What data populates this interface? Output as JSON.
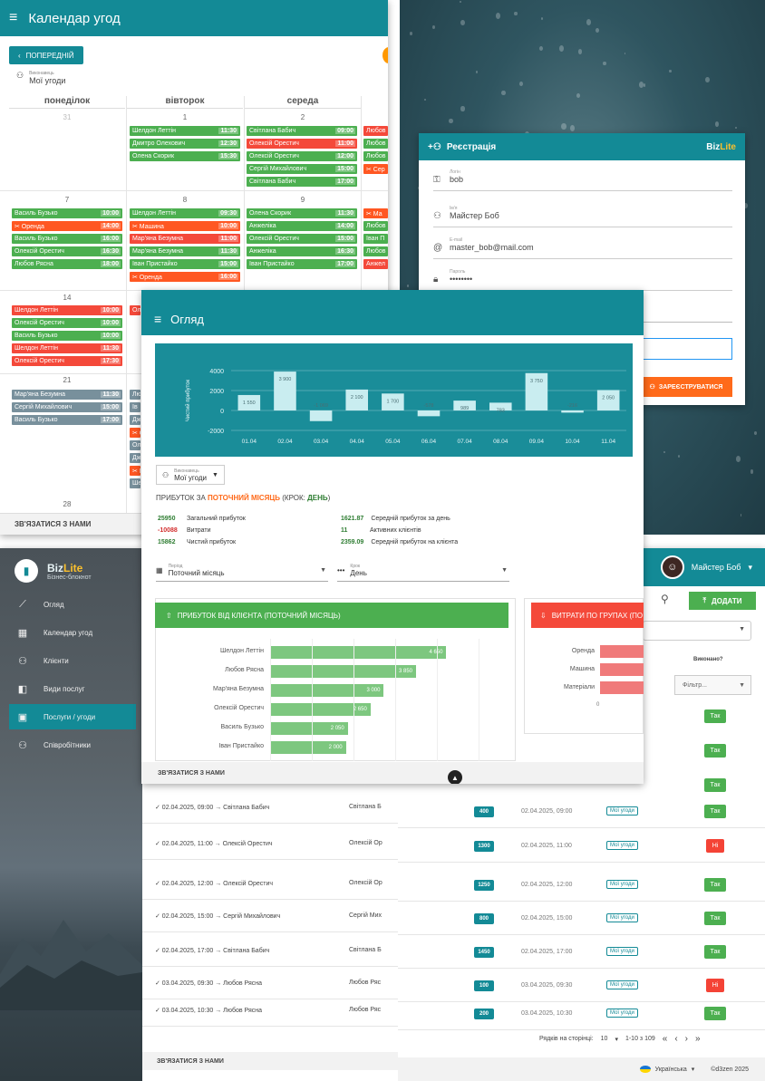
{
  "calendar": {
    "title": "Календар угод",
    "prev_label": "ПОПЕРЕДНІЙ",
    "executor_caption": "Виконавець",
    "executor_value": "Мої угоди",
    "weekdays": [
      "понеділок",
      "вівторок",
      "середа"
    ],
    "day_numbers": [
      "31",
      "1",
      "2",
      "7",
      "8",
      "9",
      "14",
      "21",
      "28"
    ],
    "events": [
      {
        "name": "Шелдон Леттін",
        "time": "11:30",
        "color": "g"
      },
      {
        "name": "Дмитро Олехович",
        "time": "12:30",
        "color": "g"
      },
      {
        "name": "Олена Скорик",
        "time": "15:30",
        "color": "g"
      },
      {
        "name": "Світлана Бабич",
        "time": "09:00",
        "color": "g"
      },
      {
        "name": "Олексій Орестич",
        "time": "11:00",
        "color": "r"
      },
      {
        "name": "Олексій Орестич",
        "time": "12:00",
        "color": "g"
      },
      {
        "name": "Сергій Михайлович",
        "time": "15:00",
        "color": "g"
      },
      {
        "name": "Світлана Бабич",
        "time": "17:00",
        "color": "g"
      },
      {
        "name": "Любов",
        "time": "",
        "color": "r"
      },
      {
        "name": "Любов",
        "time": "",
        "color": "g"
      },
      {
        "name": "Любов",
        "time": "",
        "color": "g"
      },
      {
        "name": "Сер",
        "time": "",
        "color": "o"
      },
      {
        "name": "Василь Бузько",
        "time": "10:00",
        "color": "g"
      },
      {
        "name": "Оренда",
        "time": "14:00",
        "color": "o"
      },
      {
        "name": "Василь Бузько",
        "time": "16:00",
        "color": "g"
      },
      {
        "name": "Олексій Орестич",
        "time": "16:30",
        "color": "g"
      },
      {
        "name": "Любов Рясна",
        "time": "18:00",
        "color": "g"
      },
      {
        "name": "Шелдон Леттін",
        "time": "09:30",
        "color": "g"
      },
      {
        "name": "Машина",
        "time": "10:00",
        "color": "o"
      },
      {
        "name": "Мар'яна Безумна",
        "time": "11:00",
        "color": "r"
      },
      {
        "name": "Мар'яна Безумна",
        "time": "11:30",
        "color": "g"
      },
      {
        "name": "Іван Пристайко",
        "time": "15:00",
        "color": "g"
      },
      {
        "name": "Оренда",
        "time": "16:00",
        "color": "o"
      },
      {
        "name": "Олена Скорик",
        "time": "11:30",
        "color": "g"
      },
      {
        "name": "Анжеліка",
        "time": "14:00",
        "color": "g"
      },
      {
        "name": "Олексій Орестич",
        "time": "15:00",
        "color": "g"
      },
      {
        "name": "Анжеліка",
        "time": "16:30",
        "color": "g"
      },
      {
        "name": "Іван Пристайко",
        "time": "17:00",
        "color": "g"
      },
      {
        "name": "Ма",
        "time": "",
        "color": "o"
      },
      {
        "name": "Любов",
        "time": "",
        "color": "g"
      },
      {
        "name": "Іван П",
        "time": "",
        "color": "g"
      },
      {
        "name": "Любов",
        "time": "",
        "color": "g"
      },
      {
        "name": "Анжел",
        "time": "",
        "color": "r"
      },
      {
        "name": "Шелдон Леттін",
        "time": "10:00",
        "color": "r"
      },
      {
        "name": "Олексій Орестич",
        "time": "10:00",
        "color": "g"
      },
      {
        "name": "Василь Бузько",
        "time": "10:00",
        "color": "g"
      },
      {
        "name": "Шелдон Леттін",
        "time": "11:30",
        "color": "r"
      },
      {
        "name": "Олексій Орестич",
        "time": "17:30",
        "color": "r"
      },
      {
        "name": "Мар'яна Безумна",
        "time": "11:30",
        "color": "gr"
      },
      {
        "name": "Сергій Михайлович",
        "time": "15:00",
        "color": "gr"
      },
      {
        "name": "Василь Бузько",
        "time": "17:00",
        "color": "gr"
      },
      {
        "name": "Ол",
        "time": "",
        "color": "r"
      },
      {
        "name": "Лю",
        "time": "",
        "color": "gr"
      },
      {
        "name": "Ів",
        "time": "",
        "color": "gr"
      },
      {
        "name": "Дж",
        "time": "",
        "color": "gr"
      },
      {
        "name": "Оре",
        "time": "",
        "color": "o"
      },
      {
        "name": "Ол",
        "time": "",
        "color": "gr"
      },
      {
        "name": "Дж",
        "time": "",
        "color": "gr"
      },
      {
        "name": "Ма",
        "time": "",
        "color": "o"
      },
      {
        "name": "Ше",
        "time": "",
        "color": "gr"
      }
    ],
    "footer": "ЗВ'ЯЗАТИСЯ З НАМИ"
  },
  "registration": {
    "title": "Реєстрація",
    "brand_biz": "Biz",
    "brand_lite": "Lite",
    "fields": [
      {
        "label": "Логін",
        "value": "bob",
        "icon": "key-icon"
      },
      {
        "label": "Ім'я",
        "value": "Майстер Боб",
        "icon": "person-icon"
      },
      {
        "label": "E-mail",
        "value": "master_bob@mail.com",
        "icon": "at-icon"
      },
      {
        "label": "Пароль",
        "value": "••••••••",
        "icon": "lock-icon"
      }
    ],
    "submit_label": "ЗАРЕЄСТРУВАТИСЯ"
  },
  "overview": {
    "title": "Огляд",
    "executor_caption": "Виконавець",
    "executor_value": "Мої угоди",
    "profit_prefix": "ПРИБУТОК ЗА ",
    "profit_period": "ПОТОЧНИЙ МІСЯЦЬ",
    "profit_step_prefix": " (КРОК: ",
    "profit_step": "ДЕНЬ",
    "profit_suffix": ")",
    "stats_left": [
      {
        "value": "25950",
        "label": "Загальний прибуток",
        "tone": "pos"
      },
      {
        "value": "-10088",
        "label": "Витрати",
        "tone": "neg"
      },
      {
        "value": "15862",
        "label": "Чистий прибуток",
        "tone": "pos"
      }
    ],
    "stats_right": [
      {
        "value": "1621.87",
        "label": "Середній прибуток за день",
        "tone": "pos"
      },
      {
        "value": "11",
        "label": "Активних клієнтів",
        "tone": "pos"
      },
      {
        "value": "2359.09",
        "label": "Середній прибуток на клієнта",
        "tone": "pos"
      }
    ],
    "period_caption": "Період",
    "period_value": "Поточний місяць",
    "step_caption": "Крок",
    "step_value": "День",
    "client_card": "ПРИБУТОК ВІД КЛІЄНТА (ПОТОЧНИЙ МІСЯЦЬ)",
    "expense_card": "ВИТРАТИ ПО ГРУПАХ (ПО",
    "client_bars": [
      {
        "name": "Шелдон Леттін",
        "value": 4650
      },
      {
        "name": "Любов Рясна",
        "value": 3850
      },
      {
        "name": "Мар'яна Безумна",
        "value": 3000
      },
      {
        "name": "Олексій Орестич",
        "value": 2650
      },
      {
        "name": "Василь Бузько",
        "value": 2050
      },
      {
        "name": "Іван Пристайко",
        "value": 2000
      }
    ],
    "expense_groups": [
      "Оренда",
      "Машина",
      "Матеріали"
    ],
    "expense_axis_zero": "0",
    "footer": "ЗВ'ЯЗАТИСЯ З НАМИ"
  },
  "chart_data": {
    "type": "bar",
    "title": "",
    "ylabel": "Чистий прибуток",
    "xlabel": "",
    "ylim": [
      -2000,
      4000
    ],
    "yticks": [
      "4000",
      "2000",
      "0",
      "-2000"
    ],
    "categories": [
      "01.04",
      "02.04",
      "03.04",
      "04.04",
      "05.04",
      "06.04",
      "07.04",
      "08.04",
      "09.04",
      "10.04",
      "11.04"
    ],
    "values": [
      1550,
      3900,
      -1069,
      2100,
      1700,
      -578,
      989,
      783,
      3750,
      -216,
      2050
    ],
    "value_labels": [
      "1 550",
      "3 900",
      "-1 069",
      "2 100",
      "1 700",
      "-578",
      "989",
      "783",
      "3 750",
      "-216",
      "2 050"
    ]
  },
  "sidebar": {
    "brand_biz": "Biz",
    "brand_lite": "Lite",
    "brand_sub": "Бізнес-блокнот",
    "items": [
      {
        "label": "Огляд",
        "icon": "chart-line-icon",
        "active": false
      },
      {
        "label": "Календар угод",
        "icon": "calendar-icon",
        "active": false
      },
      {
        "label": "Клієнти",
        "icon": "people-icon",
        "active": false
      },
      {
        "label": "Види послуг",
        "icon": "services-icon",
        "active": false
      },
      {
        "label": "Послуги / угоди",
        "icon": "deals-icon",
        "active": true
      },
      {
        "label": "Співробітники",
        "icon": "staff-icon",
        "active": false
      }
    ]
  },
  "deals_list": {
    "rows": [
      {
        "text": "✓ 02.04.2025, 09:00 → Світлана Бабич",
        "who": "Світлана Б"
      },
      {
        "text": "✓ 02.04.2025, 11:00 → Олексій Орестич",
        "who": "Олексій Ор"
      },
      {
        "text": "✓ 02.04.2025, 12:00 → Олексій Орестич",
        "who": "Олексій Ор"
      },
      {
        "text": "✓ 02.04.2025, 15:00 → Сергій Михайлович",
        "who": "Сергій Мих"
      },
      {
        "text": "✓ 02.04.2025, 17:00 → Світлана Бабич",
        "who": "Світлана Б"
      },
      {
        "text": "✓ 03.04.2025, 09:30 → Любов Рясна",
        "who": "Любов Ряс"
      },
      {
        "text": "✓ 03.04.2025, 10:30 → Любов Рясна",
        "who": "Любов Ряс"
      }
    ],
    "footer": "ЗВ'ЯЗАТИСЯ З НАМИ"
  },
  "services": {
    "user_name": "Майстер Боб",
    "add_label": "ДОДАТИ",
    "done_col": "Виконано?",
    "filter_placeholder": "Фільтр...",
    "top_yes": [
      "Так",
      "Так",
      "Так"
    ],
    "rows": [
      {
        "price": "400",
        "date": "02.04.2025, 09:00",
        "chip": "Мої угоди",
        "done": "Так",
        "ok": true
      },
      {
        "price": "1300",
        "date": "02.04.2025, 11:00",
        "chip": "Мої угоди",
        "done": "Ні",
        "ok": false
      },
      {
        "price": "1250",
        "date": "02.04.2025, 12:00",
        "chip": "Мої угоди",
        "done": "Так",
        "ok": true
      },
      {
        "price": "800",
        "date": "02.04.2025, 15:00",
        "chip": "Мої угоди",
        "done": "Так",
        "ok": true
      },
      {
        "price": "1450",
        "date": "02.04.2025, 17:00",
        "chip": "Мої угоди",
        "done": "Так",
        "ok": true
      },
      {
        "price": "100",
        "date": "03.04.2025, 09:30",
        "chip": "Мої угоди",
        "done": "Ні",
        "ok": false
      },
      {
        "price": "200",
        "date": "03.04.2025, 10:30",
        "chip": "Мої угоди",
        "done": "Так",
        "ok": true
      }
    ],
    "rows_per_page_label": "Рядків на сторінці:",
    "rows_per_page": "10",
    "range": "1-10 з 109",
    "language": "Українська",
    "copyright": "©d3zen 2025"
  },
  "colors": {
    "teal": "#138a96",
    "green": "#4caf50",
    "red": "#f4493a",
    "orange": "#ff6a1a"
  }
}
